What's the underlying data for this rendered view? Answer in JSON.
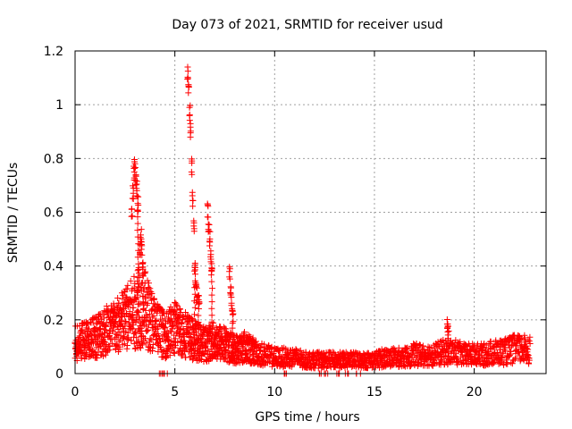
{
  "chart_data": {
    "type": "scatter",
    "title": "Day 073 of 2021, SRMTID for receiver usud",
    "xlabel": "GPS time / hours",
    "ylabel": "SRMTID / TECUs",
    "xlim": [
      0,
      23.6
    ],
    "ylim": [
      0,
      1.2
    ],
    "xticks": [
      0,
      5,
      10,
      15,
      20
    ],
    "xtick_labels": [
      "0",
      "5",
      "10",
      "15",
      "20"
    ],
    "yticks": [
      0,
      0.2,
      0.4,
      0.6,
      0.8,
      1,
      1.2
    ],
    "ytick_labels": [
      "0",
      "0.2",
      "0.4",
      "0.6",
      "0.8",
      "1",
      "1.2"
    ],
    "grid": true,
    "marker": "+",
    "series": [
      {
        "name": "usud",
        "color": "#ff0000",
        "description": "Dense per-epoch SRMTID values; baseline envelope plus spike clusters",
        "baseline": {
          "x": [
            0,
            0.5,
            1,
            1.5,
            2,
            2.5,
            3,
            3.5,
            4,
            4.5,
            5,
            5.5,
            6,
            6.5,
            7,
            7.5,
            8,
            8.5,
            9,
            9.5,
            10,
            10.5,
            11,
            11.5,
            12,
            12.5,
            13,
            13.5,
            14,
            14.5,
            15,
            15.5,
            16,
            16.5,
            17,
            17.5,
            18,
            18.5,
            19,
            19.5,
            20,
            20.5,
            21,
            21.5,
            22,
            22.5,
            22.8
          ],
          "y": [
            0.11,
            0.12,
            0.14,
            0.16,
            0.17,
            0.2,
            0.23,
            0.24,
            0.18,
            0.14,
            0.17,
            0.15,
            0.12,
            0.11,
            0.12,
            0.11,
            0.09,
            0.1,
            0.08,
            0.07,
            0.06,
            0.06,
            0.06,
            0.05,
            0.05,
            0.05,
            0.05,
            0.05,
            0.05,
            0.05,
            0.05,
            0.06,
            0.06,
            0.06,
            0.07,
            0.07,
            0.07,
            0.08,
            0.08,
            0.07,
            0.07,
            0.07,
            0.08,
            0.08,
            0.09,
            0.09,
            0.09
          ]
        },
        "spikes": [
          {
            "x": [
              2.85,
              2.9,
              2.95,
              3.0,
              3.05,
              3.1,
              3.15
            ],
            "y": [
              0.62,
              0.7,
              0.78,
              0.81,
              0.76,
              0.72,
              0.66
            ]
          },
          {
            "x": [
              3.2,
              3.25,
              3.3,
              3.35,
              3.4
            ],
            "y": [
              0.4,
              0.48,
              0.55,
              0.5,
              0.42
            ]
          },
          {
            "x": [
              5.65,
              5.7,
              5.75,
              5.8,
              5.85,
              5.9,
              5.95,
              6.0
            ],
            "y": [
              1.15,
              1.08,
              1.0,
              0.93,
              0.8,
              0.68,
              0.57,
              0.42
            ]
          },
          {
            "x": [
              6.05,
              6.1,
              6.2
            ],
            "y": [
              0.38,
              0.32,
              0.3
            ]
          },
          {
            "x": [
              6.65,
              6.7,
              6.75,
              6.8,
              6.85
            ],
            "y": [
              0.64,
              0.58,
              0.53,
              0.47,
              0.41
            ]
          },
          {
            "x": [
              7.75,
              7.8,
              7.85,
              7.9
            ],
            "y": [
              0.41,
              0.35,
              0.29,
              0.24
            ]
          },
          {
            "x": [
              18.65,
              18.7
            ],
            "y": [
              0.21,
              0.18
            ]
          }
        ],
        "zeros_x": [
          4.3,
          4.5,
          10.5,
          12.3,
          12.6,
          13.2,
          13.6,
          14.2
        ]
      }
    ]
  }
}
